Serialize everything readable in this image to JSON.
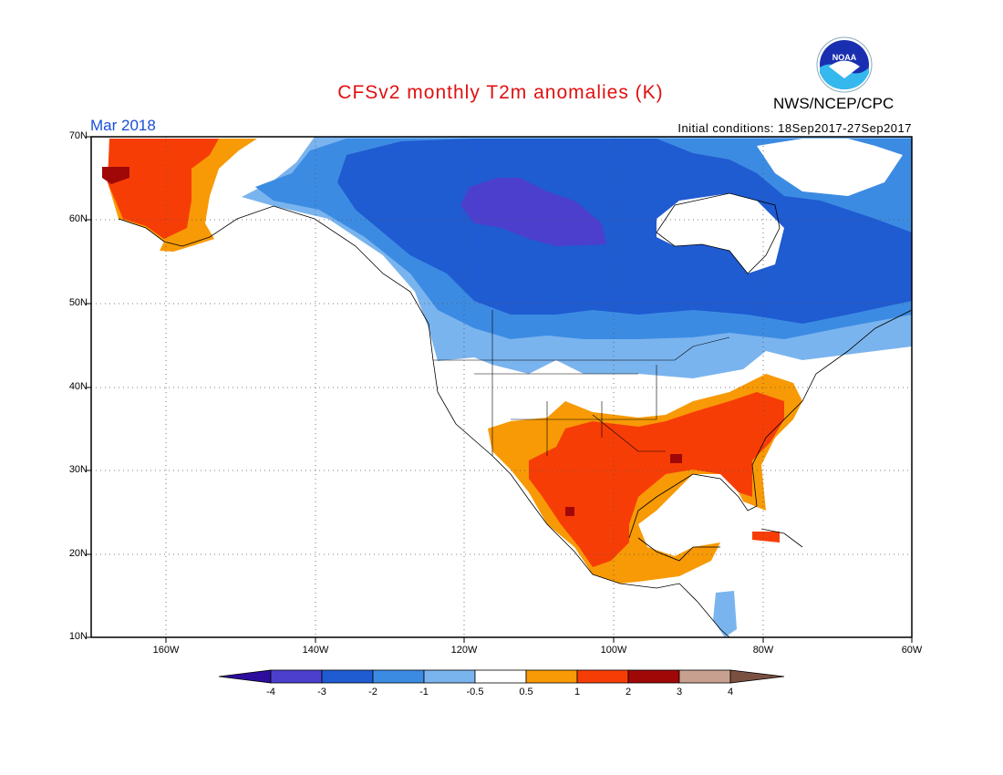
{
  "header": {
    "title": "CFSv2 monthly T2m anomalies (K)",
    "month": "Mar 2018",
    "initial_conditions": "Initial conditions: 18Sep2017-27Sep2017",
    "agency": "NWS/NCEP/CPC",
    "logo_text": "NOAA"
  },
  "map": {
    "lat_labels": [
      "70N",
      "60N",
      "50N",
      "40N",
      "30N",
      "20N",
      "10N"
    ],
    "lon_labels": [
      "160W",
      "140W",
      "120W",
      "100W",
      "80W",
      "60W"
    ]
  },
  "colorbar": {
    "labels": [
      "-4",
      "-3",
      "-2",
      "-1",
      "-0.5",
      "0.5",
      "1",
      "2",
      "3",
      "4"
    ],
    "colors": [
      "#2d0d9e",
      "#4d3fce",
      "#1f5bd1",
      "#3c8be3",
      "#7ab4ee",
      "#ffffff",
      "#f79a06",
      "#f73d06",
      "#a00808",
      "#c8a090",
      "#7a5040"
    ]
  }
}
